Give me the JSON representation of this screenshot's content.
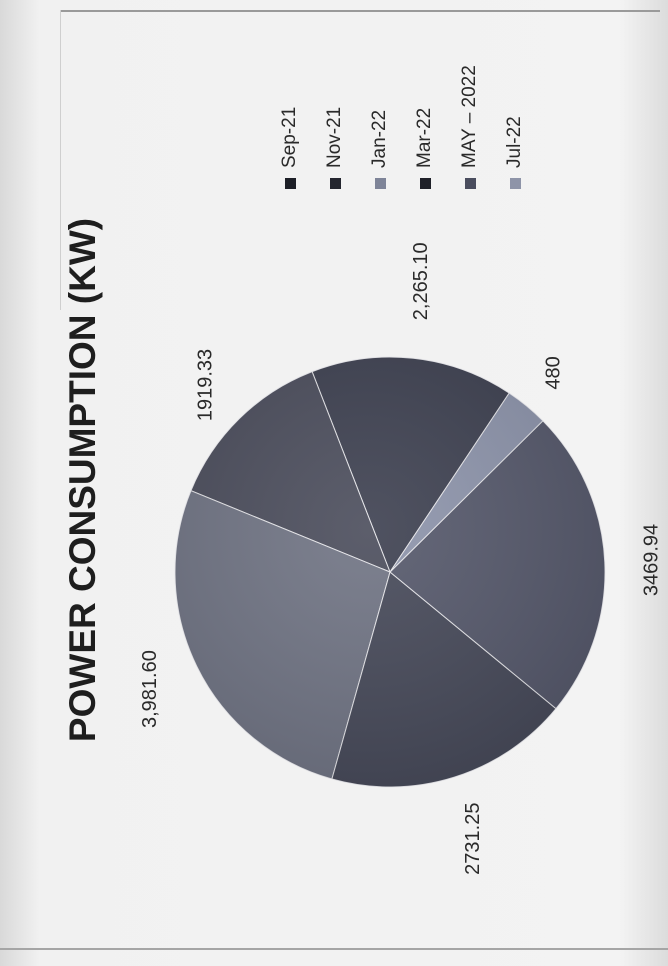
{
  "chart_data": {
    "type": "pie",
    "title": "POWER CONSUMPTION (KW)",
    "categories": [
      "Sep-21",
      "Nov-21",
      "Jan-22",
      "Mar-22",
      "MAY – 2022",
      "Jul-22"
    ],
    "values": [
      2265.1,
      1919.33,
      3981.6,
      2731.25,
      3469.94,
      480
    ],
    "data_labels": [
      "2,265.10",
      "1919.33",
      "3,981.60",
      "2731.25",
      "3469.94",
      "480"
    ],
    "colors": [
      "#3c3f4f",
      "#4a4c5b",
      "#6f7383",
      "#454858",
      "#54576a",
      "#8c93aa"
    ],
    "legend_position": "right"
  }
}
